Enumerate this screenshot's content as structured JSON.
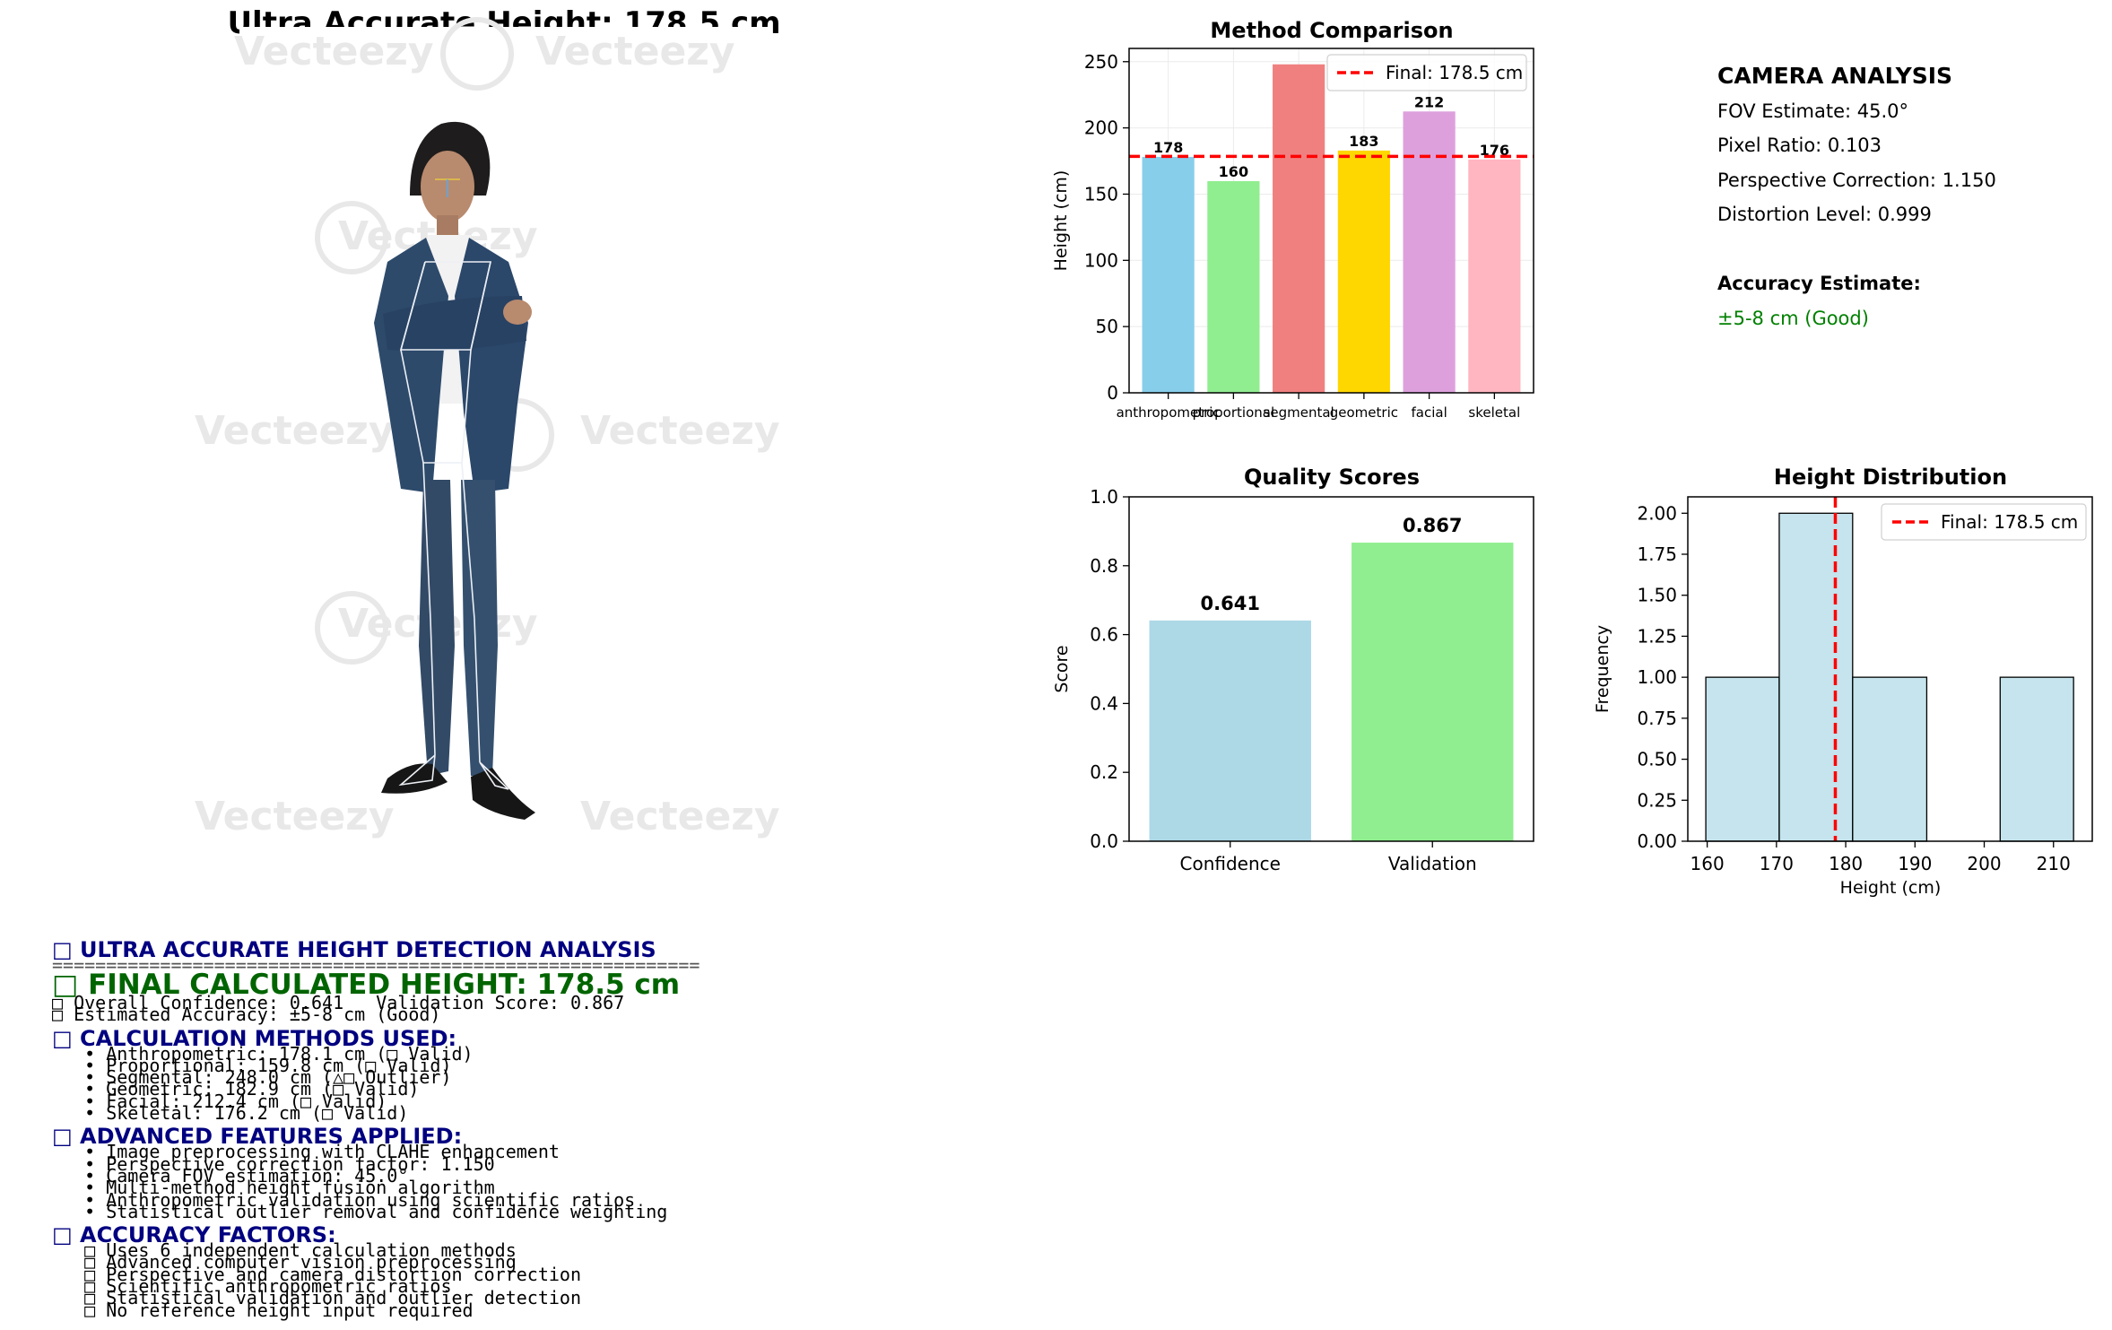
{
  "figure": {
    "main_title": "Ultra Accurate Height: 178.5 cm",
    "image_watermark": "Vecteezy"
  },
  "chart_data": [
    {
      "type": "bar",
      "title": "Method Comparison",
      "ylabel": "Height (cm)",
      "xlabel": "",
      "categories": [
        "anthropometric",
        "proportional",
        "segmental",
        "geometric",
        "facial",
        "skeletal"
      ],
      "values": [
        178.1,
        159.8,
        248.0,
        182.9,
        212.4,
        176.2
      ],
      "data_labels": [
        "178",
        "160",
        "",
        "183",
        "212",
        "176"
      ],
      "colors": [
        "#87ceeb",
        "#90ee90",
        "#f08080",
        "#ffd700",
        "#dda0dd",
        "#ffb6c1"
      ],
      "ylim": [
        0,
        260
      ],
      "yticks": [
        0,
        50,
        100,
        150,
        200,
        250
      ],
      "reference_line": {
        "value": 178.5,
        "label": "Final: 178.5 cm",
        "color": "#ff0000",
        "style": "dashed"
      },
      "legend": "top-right",
      "grid": true
    },
    {
      "type": "bar",
      "title": "Quality Scores",
      "ylabel": "Score",
      "xlabel": "",
      "categories": [
        "Confidence",
        "Validation"
      ],
      "values": [
        0.641,
        0.867
      ],
      "data_labels": [
        "0.641",
        "0.867"
      ],
      "colors": [
        "#add8e6",
        "#90ee90"
      ],
      "ylim": [
        0,
        1.0
      ],
      "yticks": [
        0.0,
        0.2,
        0.4,
        0.6,
        0.8,
        1.0
      ],
      "grid": false
    },
    {
      "type": "bar",
      "subtype": "histogram",
      "title": "Height Distribution",
      "xlabel": "Height (cm)",
      "ylabel": "Frequency",
      "bins": [
        {
          "x0": 159.8,
          "x1": 170.4,
          "count": 1
        },
        {
          "x0": 170.4,
          "x1": 181.0,
          "count": 2
        },
        {
          "x0": 181.0,
          "x1": 191.7,
          "count": 1
        },
        {
          "x0": 191.7,
          "x1": 202.3,
          "count": 0
        },
        {
          "x0": 202.3,
          "x1": 212.9,
          "count": 1
        }
      ],
      "bar_color": "#add8e6",
      "xlim": [
        157.2,
        215.6
      ],
      "xticks": [
        160,
        170,
        180,
        190,
        200,
        210
      ],
      "ylim": [
        0,
        2.1
      ],
      "yticks": [
        0.0,
        0.25,
        0.5,
        0.75,
        1.0,
        1.25,
        1.5,
        1.75,
        2.0
      ],
      "ytick_labels": [
        "0.00",
        "0.25",
        "0.50",
        "0.75",
        "1.00",
        "1.25",
        "1.50",
        "1.75",
        "2.00"
      ],
      "reference_line": {
        "value": 178.5,
        "label": "Final: 178.5 cm",
        "color": "#ff0000",
        "style": "dashed"
      },
      "legend": "top-right",
      "grid": false
    }
  ],
  "camera": {
    "title": "CAMERA ANALYSIS",
    "fov": "FOV Estimate: 45.0°",
    "pixel_ratio": "Pixel Ratio: 0.103",
    "perspective": "Perspective Correction: 1.150",
    "distortion": "Distortion Level: 0.999",
    "accuracy_title": "Accuracy Estimate:",
    "accuracy_value": "±5-8 cm (Good)"
  },
  "report": {
    "heading": "□ ULTRA ACCURATE HEIGHT DETECTION ANALYSIS",
    "separator": "============================================================",
    "final": "□ FINAL CALCULATED HEIGHT: 178.5 cm",
    "confidence_line": "□ Overall Confidence: 0.641   Validation Score: 0.867",
    "accuracy_line": "□ Estimated Accuracy: ±5-8 cm (Good)",
    "methods_heading": "□ CALCULATION METHODS USED:",
    "methods": [
      "   • Anthropometric: 178.1 cm (□ Valid)",
      "   • Proportional: 159.8 cm (□ Valid)",
      "   • Segmental: 248.0 cm (△□ Outlier)",
      "   • Geometric: 182.9 cm (□ Valid)",
      "   • Facial: 212.4 cm (□ Valid)",
      "   • Skeletal: 176.2 cm (□ Valid)"
    ],
    "features_heading": "□ ADVANCED FEATURES APPLIED:",
    "features": [
      "   • Image preprocessing with CLAHE enhancement",
      "   • Perspective correction factor: 1.150",
      "   • Camera FOV estimation: 45.0°",
      "   • Multi-method height fusion algorithm",
      "   • Anthropometric validation using scientific ratios",
      "   • Statistical outlier removal and confidence weighting"
    ],
    "factors_heading": "□ ACCURACY FACTORS:",
    "factors": [
      "   □ Uses 6 independent calculation methods",
      "   □ Advanced computer vision preprocessing",
      "   □ Perspective and camera distortion correction",
      "   □ Scientific anthropometric ratios",
      "   □ Statistical validation and outlier detection",
      "   □ No reference height input required"
    ]
  }
}
